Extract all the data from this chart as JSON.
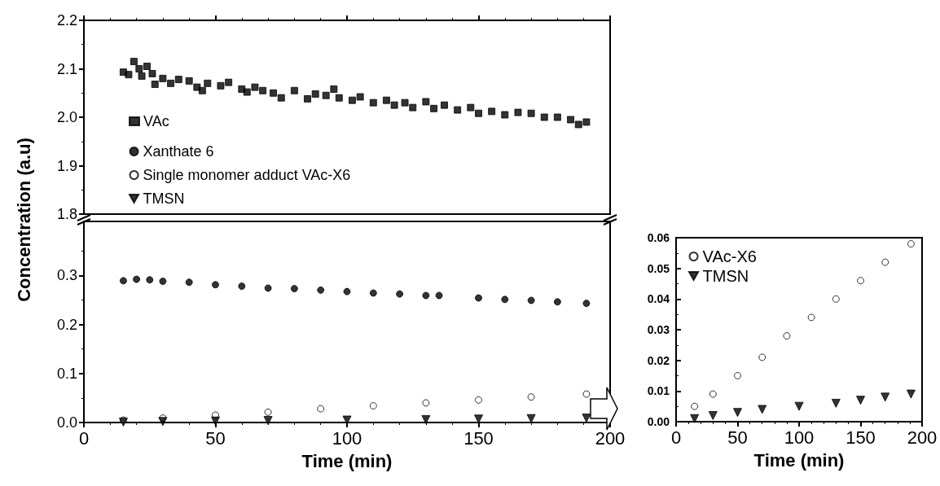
{
  "chart_data": [
    {
      "type": "scatter",
      "ylabel": "Concentration (a.u)",
      "xlim": [
        0,
        200
      ],
      "xticks": [
        0,
        50,
        100,
        150,
        200
      ],
      "ylim": [
        1.8,
        2.2
      ],
      "yticks": [
        1.8,
        1.9,
        {
          "value": 2.0,
          "label": "2.0"
        },
        2.1,
        2.2
      ],
      "tick_labels": "y",
      "legend": "left",
      "grid": false,
      "x": [
        15,
        17,
        19,
        21,
        22,
        24,
        26,
        27,
        30,
        33,
        36,
        40,
        43,
        45,
        47,
        52,
        55,
        60,
        62,
        65,
        68,
        72,
        75,
        80,
        85,
        88,
        92,
        95,
        97,
        102,
        105,
        110,
        115,
        118,
        122,
        125,
        130,
        133,
        137,
        142,
        147,
        150,
        155,
        160,
        165,
        170,
        175,
        180,
        185,
        188,
        191
      ],
      "series": [
        {
          "name": "VAc",
          "color": "#000000",
          "marker": "square",
          "values": [
            2.093,
            2.088,
            2.115,
            2.1,
            2.085,
            2.105,
            2.09,
            2.068,
            2.08,
            2.07,
            2.078,
            2.075,
            2.062,
            2.055,
            2.07,
            2.065,
            2.072,
            2.058,
            2.052,
            2.062,
            2.055,
            2.05,
            2.04,
            2.055,
            2.038,
            2.048,
            2.045,
            2.058,
            2.04,
            2.035,
            2.042,
            2.03,
            2.035,
            2.025,
            2.03,
            2.02,
            2.032,
            2.018,
            2.025,
            2.015,
            2.02,
            2.008,
            2.012,
            2.005,
            2.01,
            2.008,
            2.0,
            2.0,
            1.995,
            1.985,
            1.99
          ]
        }
      ]
    },
    {
      "type": "scatter",
      "xlabel": "Time (min)",
      "xlim": [
        0,
        200
      ],
      "xticks": [
        0,
        50,
        100,
        150,
        200
      ],
      "ylim": [
        0,
        0.41
      ],
      "yticks": [
        {
          "value": 0,
          "label": "0.0"
        },
        0.1,
        0.2,
        0.3
      ],
      "legend": "top left",
      "grid": false,
      "series": [
        {
          "name": "Xanthate 6",
          "color": "#000000",
          "marker": "circle",
          "x": [
            15,
            20,
            25,
            30,
            40,
            50,
            60,
            70,
            80,
            90,
            100,
            110,
            120,
            130,
            135,
            150,
            160,
            170,
            180,
            191
          ],
          "values": [
            0.289,
            0.292,
            0.291,
            0.288,
            0.286,
            0.281,
            0.278,
            0.274,
            0.273,
            0.27,
            0.267,
            0.264,
            0.262,
            0.259,
            0.259,
            0.254,
            0.251,
            0.249,
            0.246,
            0.243
          ]
        },
        {
          "name": "Single monomer adduct VAc-X6",
          "color": "#ffffff",
          "marker": "circle",
          "x": [
            15,
            30,
            50,
            70,
            90,
            110,
            130,
            150,
            170,
            191
          ],
          "values": [
            0.005,
            0.009,
            0.015,
            0.021,
            0.028,
            0.034,
            0.04,
            0.046,
            0.052,
            0.058
          ]
        },
        {
          "name": "TMSN",
          "color": "#000000",
          "marker": "triangle",
          "x": [
            15,
            30,
            50,
            70,
            100,
            130,
            150,
            170,
            191
          ],
          "values": [
            0.001,
            0.002,
            0.003,
            0.004,
            0.005,
            0.006,
            0.007,
            0.008,
            0.009
          ]
        }
      ]
    },
    {
      "type": "scatter",
      "xlabel": "Time (min)",
      "xlim": [
        0,
        200
      ],
      "xticks": [
        0,
        50,
        100,
        150,
        200
      ],
      "ylim": [
        0,
        0.06
      ],
      "yticks": [
        {
          "value": 0,
          "label": "0.00"
        },
        {
          "value": 0.01,
          "label": "0.01"
        },
        {
          "value": 0.02,
          "label": "0.02"
        },
        {
          "value": 0.03,
          "label": "0.03"
        },
        {
          "value": 0.04,
          "label": "0.04"
        },
        {
          "value": 0.05,
          "label": "0.05"
        },
        {
          "value": 0.06,
          "label": "0.06"
        }
      ],
      "legend": "top left",
      "grid": false,
      "series": [
        {
          "name": "VAc-X6",
          "color": "#ffffff",
          "marker": "circle",
          "x": [
            15,
            30,
            50,
            70,
            90,
            110,
            130,
            150,
            170,
            191
          ],
          "values": [
            0.005,
            0.009,
            0.015,
            0.021,
            0.028,
            0.034,
            0.04,
            0.046,
            0.052,
            0.058
          ]
        },
        {
          "name": "TMSN",
          "color": "#000000",
          "marker": "triangle",
          "x": [
            15,
            30,
            50,
            70,
            100,
            130,
            150,
            170,
            191
          ],
          "values": [
            0.001,
            0.002,
            0.003,
            0.004,
            0.005,
            0.006,
            0.007,
            0.008,
            0.009
          ]
        }
      ]
    }
  ]
}
